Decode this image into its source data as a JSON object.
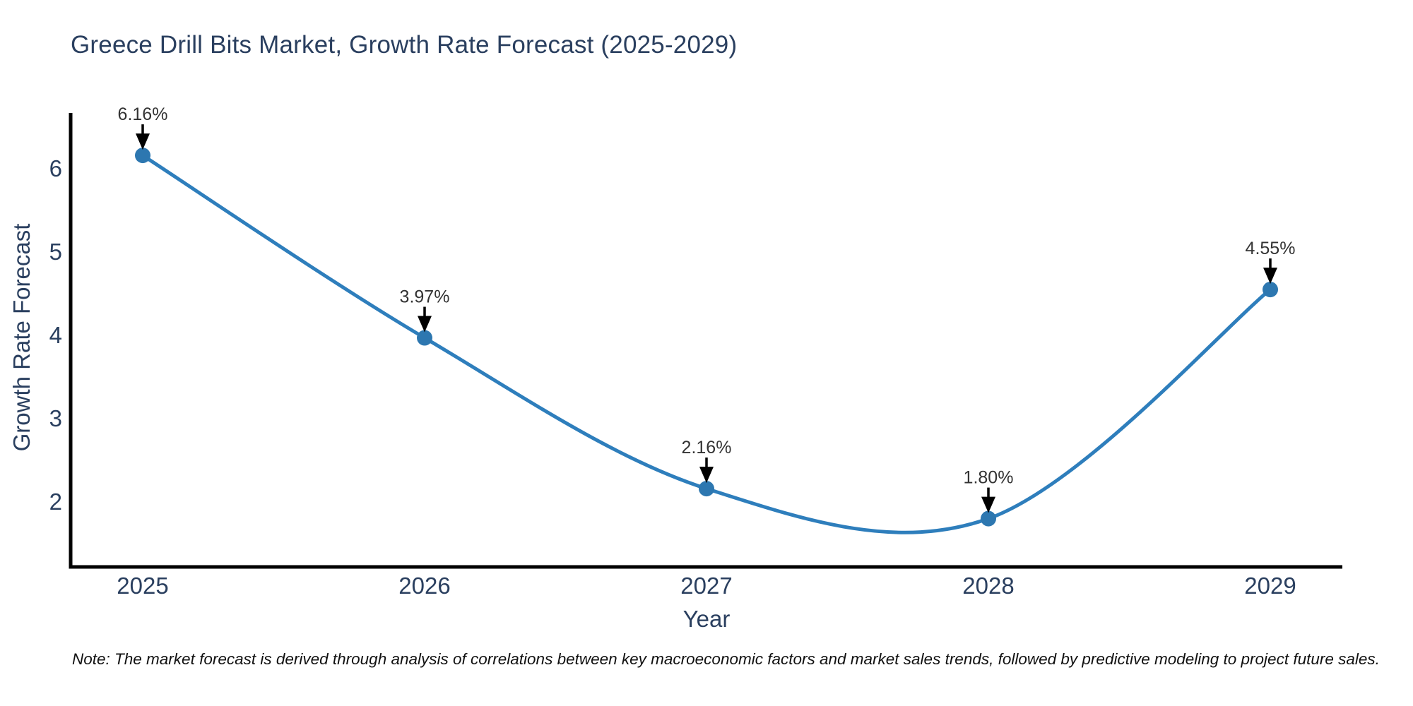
{
  "title": "Greece Drill Bits Market, Growth Rate Forecast (2025-2029)",
  "note": "Note: The market forecast is derived through analysis of correlations between key macroeconomic factors and market sales trends, followed by predictive modeling to project future sales.",
  "colors": {
    "line": "#2e7ebc",
    "marker": "#2d77b0",
    "axis": "#000000",
    "heading_text": "#2a3f5f",
    "tick_text": "#2a3f5f",
    "annotation_text": "#333333",
    "arrow": "#000000",
    "note_text": "#111111",
    "background": "#ffffff"
  },
  "chart_data": {
    "type": "line",
    "line_shape": "spline",
    "title": "Greece Drill Bits Market, Growth Rate Forecast (2025-2029)",
    "xlabel": "Year",
    "ylabel": "Growth Rate Forecast",
    "categories": [
      "2025",
      "2026",
      "2027",
      "2028",
      "2029"
    ],
    "values": [
      6.16,
      3.97,
      2.16,
      1.8,
      4.55
    ],
    "point_labels": [
      "6.16%",
      "3.97%",
      "2.16%",
      "1.80%",
      "4.55%"
    ],
    "y_ticks": [
      2,
      3,
      4,
      5,
      6
    ],
    "ylim": [
      1.2,
      6.7
    ],
    "grid": "off",
    "legend": "none",
    "annotations_style": "label-with-down-arrow-at-each-point"
  }
}
